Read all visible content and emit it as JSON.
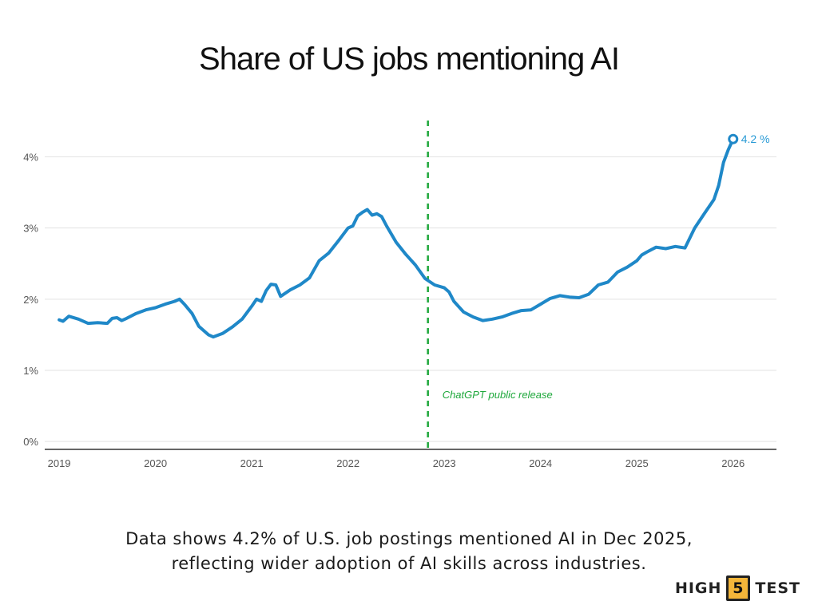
{
  "title": "Share of US jobs mentioning AI",
  "caption": {
    "line1": "Data shows 4.2% of U.S. job postings mentioned AI in Dec 2025,",
    "line2": "reflecting wider adoption of AI skills across industries."
  },
  "brand": {
    "left": "HIGH",
    "number": "5",
    "right": "TEST"
  },
  "chart_data": {
    "type": "line",
    "title": "Share of US jobs mentioning AI",
    "xlabel": "",
    "ylabel": "",
    "xlim": [
      2018.85,
      2026.45
    ],
    "ylim": [
      -0.2,
      4.6
    ],
    "x_ticks": [
      2019,
      2020,
      2021,
      2022,
      2023,
      2024,
      2025,
      2026
    ],
    "x_tick_labels": [
      "2019",
      "2020",
      "2021",
      "2022",
      "2023",
      "2024",
      "2025",
      "2026"
    ],
    "y_ticks": [
      0,
      1,
      2,
      3,
      4
    ],
    "y_tick_labels": [
      "0%",
      "1%",
      "2%",
      "3%",
      "4%"
    ],
    "grid": "horizontal",
    "colors": {
      "line": "#1f88c8",
      "annotation": "#1fa83c",
      "end_label": "#2a9bd6"
    },
    "series": [
      {
        "x": [
          2019.0,
          2019.04,
          2019.1,
          2019.2,
          2019.3,
          2019.4,
          2019.5,
          2019.55,
          2019.6,
          2019.65,
          2019.7,
          2019.8,
          2019.9,
          2020.0,
          2020.1,
          2020.2,
          2020.25,
          2020.3,
          2020.38,
          2020.45,
          2020.55,
          2020.6,
          2020.7,
          2020.8,
          2020.9,
          2021.0,
          2021.05,
          2021.1,
          2021.15,
          2021.2,
          2021.25,
          2021.3,
          2021.4,
          2021.5,
          2021.6,
          2021.7,
          2021.8,
          2021.9,
          2022.0,
          2022.05,
          2022.1,
          2022.15,
          2022.2,
          2022.25,
          2022.3,
          2022.35,
          2022.4,
          2022.5,
          2022.6,
          2022.7,
          2022.8,
          2022.9,
          2023.0,
          2023.05,
          2023.1,
          2023.2,
          2023.3,
          2023.4,
          2023.5,
          2023.6,
          2023.7,
          2023.8,
          2023.9,
          2024.0,
          2024.1,
          2024.2,
          2024.3,
          2024.4,
          2024.5,
          2024.6,
          2024.7,
          2024.8,
          2024.9,
          2025.0,
          2025.05,
          2025.1,
          2025.2,
          2025.3,
          2025.4,
          2025.5,
          2025.6,
          2025.7,
          2025.8,
          2025.85,
          2025.9,
          2025.95,
          2026.0
        ],
        "y": [
          1.71,
          1.69,
          1.76,
          1.72,
          1.66,
          1.67,
          1.66,
          1.73,
          1.74,
          1.7,
          1.73,
          1.8,
          1.85,
          1.88,
          1.93,
          1.97,
          2.0,
          1.93,
          1.8,
          1.62,
          1.5,
          1.47,
          1.52,
          1.61,
          1.72,
          1.9,
          2.0,
          1.97,
          2.12,
          2.21,
          2.2,
          2.04,
          2.13,
          2.2,
          2.3,
          2.54,
          2.65,
          2.82,
          3.0,
          3.03,
          3.17,
          3.22,
          3.26,
          3.18,
          3.2,
          3.16,
          3.03,
          2.8,
          2.63,
          2.48,
          2.29,
          2.2,
          2.16,
          2.1,
          1.97,
          1.82,
          1.75,
          1.7,
          1.72,
          1.75,
          1.8,
          1.84,
          1.85,
          1.93,
          2.01,
          2.05,
          2.03,
          2.02,
          2.07,
          2.2,
          2.24,
          2.38,
          2.45,
          2.54,
          2.62,
          2.66,
          2.73,
          2.71,
          2.74,
          2.72,
          3.0,
          3.2,
          3.4,
          3.6,
          3.92,
          4.1,
          4.25
        ]
      }
    ],
    "end_label": "4.2 %",
    "annotations": [
      {
        "x": 2022.83,
        "label": "ChatGPT public release"
      }
    ]
  }
}
